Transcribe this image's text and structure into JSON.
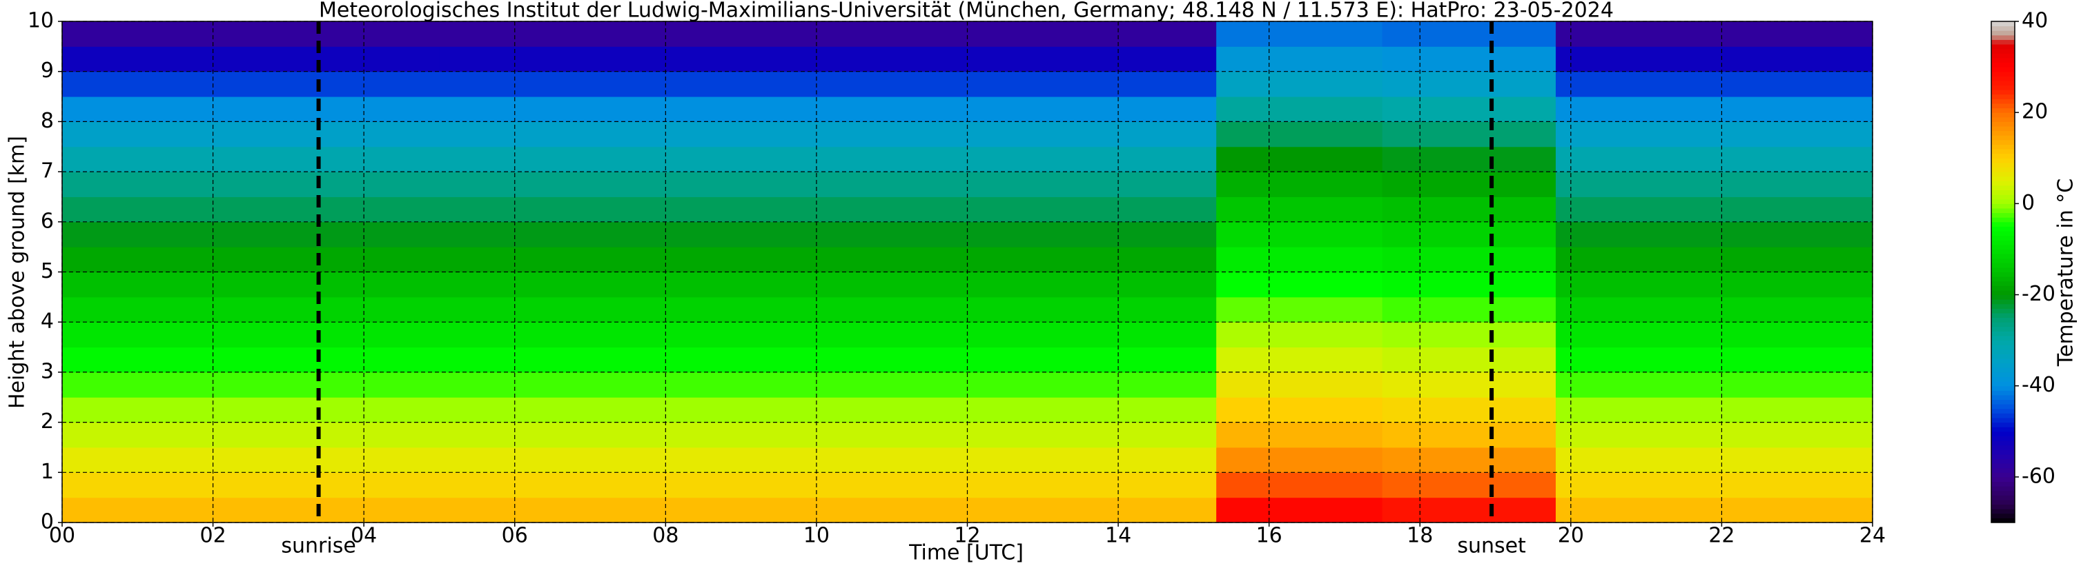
{
  "chart_data": {
    "type": "heatmap",
    "title": "Meteorologisches Institut der Ludwig-Maximilians-Universität (München, Germany; 48.148 N / 11.573 E):    HatPro: 23-05-2024",
    "x_label": "Time [UTC]",
    "y_label": "Height above ground [km]",
    "colorbar_label": "Temperature in °C",
    "x_bins": [
      0,
      5,
      10,
      15.3,
      17.5,
      19.8,
      24
    ],
    "y_bins": [
      0,
      0.5,
      1,
      1.5,
      2,
      2.5,
      3,
      3.5,
      4,
      4.5,
      5,
      5.5,
      6,
      6.5,
      7,
      7.5,
      8,
      8.5,
      9,
      9.5,
      10
    ],
    "z": [
      [
        12,
        12,
        12,
        29,
        27,
        12
      ],
      [
        9,
        9,
        9,
        22,
        21,
        9
      ],
      [
        6,
        6,
        6,
        17,
        16,
        6
      ],
      [
        3,
        3,
        3,
        13,
        12,
        3
      ],
      [
        0,
        0,
        0,
        10,
        9,
        0
      ],
      [
        -3,
        -3,
        -3,
        7,
        6,
        -3
      ],
      [
        -6,
        -6,
        -6,
        4,
        3,
        -6
      ],
      [
        -9,
        -9,
        -9,
        1,
        0,
        -9
      ],
      [
        -12,
        -12,
        -12,
        -2,
        -3,
        -12
      ],
      [
        -15,
        -15,
        -15,
        -5,
        -6,
        -15
      ],
      [
        -18,
        -18,
        -18,
        -8,
        -9,
        -18
      ],
      [
        -21,
        -21,
        -21,
        -11,
        -12,
        -21
      ],
      [
        -24,
        -24,
        -24,
        -14,
        -15,
        -24
      ],
      [
        -27,
        -27,
        -27,
        -17,
        -18,
        -27
      ],
      [
        -31,
        -31,
        -31,
        -20,
        -21,
        -31
      ],
      [
        -35,
        -35,
        -35,
        -24,
        -25,
        -35
      ],
      [
        -40,
        -40,
        -40,
        -29,
        -30,
        -40
      ],
      [
        -46,
        -46,
        -46,
        -34,
        -35,
        -46
      ],
      [
        -52,
        -52,
        -52,
        -38,
        -39,
        -52
      ],
      [
        -58,
        -58,
        -58,
        -42,
        -43,
        -58
      ]
    ],
    "xlim": [
      0,
      24
    ],
    "ylim": [
      0,
      10
    ],
    "clim": [
      -70,
      40
    ],
    "xticks": [
      {
        "value": 0,
        "label": "00"
      },
      {
        "value": 2,
        "label": "02"
      },
      {
        "value": 4,
        "label": "04"
      },
      {
        "value": 6,
        "label": "06"
      },
      {
        "value": 8,
        "label": "08"
      },
      {
        "value": 10,
        "label": "10"
      },
      {
        "value": 12,
        "label": "12"
      },
      {
        "value": 14,
        "label": "14"
      },
      {
        "value": 16,
        "label": "16"
      },
      {
        "value": 18,
        "label": "18"
      },
      {
        "value": 20,
        "label": "20"
      },
      {
        "value": 22,
        "label": "22"
      },
      {
        "value": 24,
        "label": "24"
      }
    ],
    "yticks": [
      0,
      1,
      2,
      3,
      4,
      5,
      6,
      7,
      8,
      9,
      10
    ],
    "cticks": [
      -60,
      -40,
      -20,
      0,
      20,
      40
    ],
    "grid": true,
    "annotations": [
      {
        "x": 3.4,
        "label": "sunrise"
      },
      {
        "x": 18.95,
        "label": "sunset"
      }
    ],
    "colorscale": [
      [
        -70,
        "#000000"
      ],
      [
        -66,
        "#2a0050"
      ],
      [
        -60,
        "#3a0090"
      ],
      [
        -55,
        "#2000b0"
      ],
      [
        -50,
        "#0000c8"
      ],
      [
        -45,
        "#0050e0"
      ],
      [
        -40,
        "#0090e0"
      ],
      [
        -35,
        "#00a0c8"
      ],
      [
        -30,
        "#00a8a8"
      ],
      [
        -25,
        "#00a070"
      ],
      [
        -20,
        "#009800"
      ],
      [
        -15,
        "#00c000"
      ],
      [
        -10,
        "#00e000"
      ],
      [
        -5,
        "#00ff00"
      ],
      [
        0,
        "#a0ff00"
      ],
      [
        5,
        "#e0f000"
      ],
      [
        10,
        "#ffd000"
      ],
      [
        15,
        "#ffa000"
      ],
      [
        20,
        "#ff7000"
      ],
      [
        25,
        "#ff2000"
      ],
      [
        30,
        "#ff0000"
      ],
      [
        35,
        "#e00000"
      ],
      [
        37,
        "#c0a090"
      ],
      [
        40,
        "#d8d8d8"
      ]
    ]
  }
}
